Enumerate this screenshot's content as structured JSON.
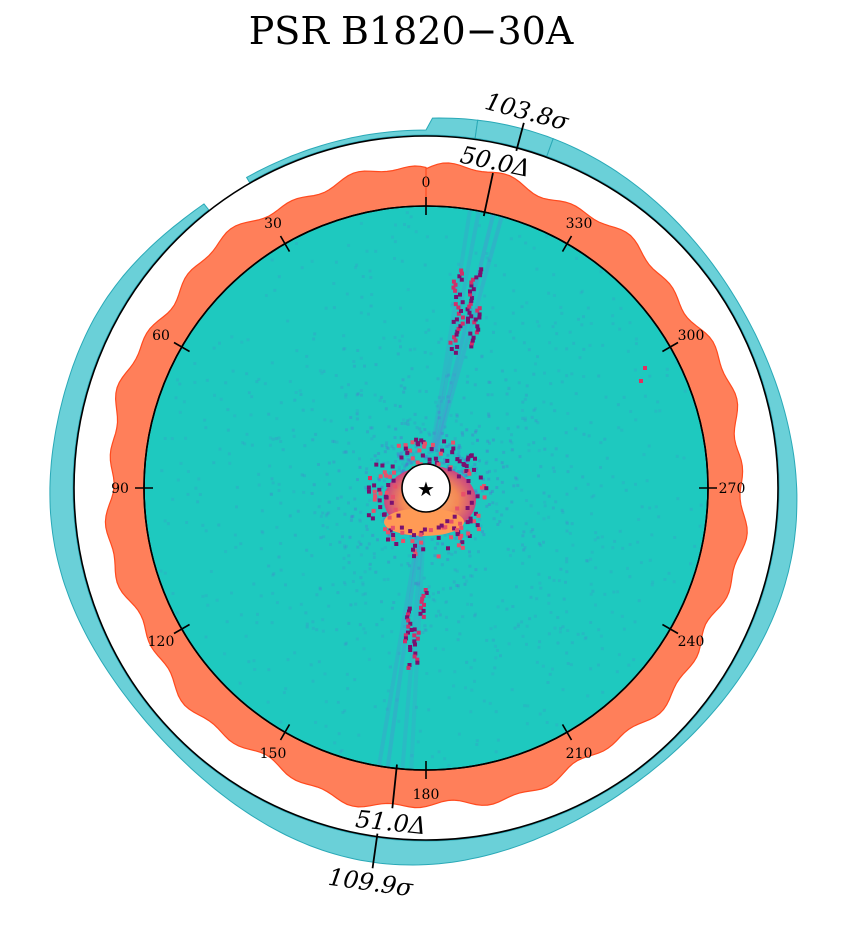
{
  "figure": {
    "title": "PSR B1820−30A"
  },
  "chart_data": {
    "type": "polar-image",
    "title": "PSR B1820−30A",
    "center_marker": "star-icon",
    "angle_ticks": [
      {
        "deg": 0,
        "label": "0"
      },
      {
        "deg": 30,
        "label": "30"
      },
      {
        "deg": 60,
        "label": "60"
      },
      {
        "deg": 90,
        "label": "90"
      },
      {
        "deg": 120,
        "label": "120"
      },
      {
        "deg": 150,
        "label": "150"
      },
      {
        "deg": 180,
        "label": "180"
      },
      {
        "deg": 210,
        "label": "210"
      },
      {
        "deg": 240,
        "label": "240"
      },
      {
        "deg": 270,
        "label": "270"
      },
      {
        "deg": 300,
        "label": "300"
      },
      {
        "deg": 330,
        "label": "330"
      }
    ],
    "annotations": [
      {
        "name": "peak-delta-north",
        "deg": 348,
        "label": "50.0Δ",
        "ring": "inner"
      },
      {
        "name": "peak-sigma-north",
        "deg": 345,
        "label": "103.8σ",
        "ring": "outer"
      },
      {
        "name": "peak-delta-south",
        "deg": 174,
        "label": "51.0Δ",
        "ring": "inner"
      },
      {
        "name": "peak-sigma-south",
        "deg": 172,
        "label": "109.9σ",
        "ring": "outer"
      }
    ],
    "colors": {
      "disk": "#1ec9bf",
      "inner_ring_fill": "#ff7f5a",
      "inner_ring_edge": "#ff4a1e",
      "outer_ring_fill": "#6ad0d8",
      "outer_ring_edge": "#2aa9b7",
      "hot_core": "#ff9a55",
      "dark_pixel": "#7a1070",
      "speckle": "#5a63d6"
    }
  }
}
